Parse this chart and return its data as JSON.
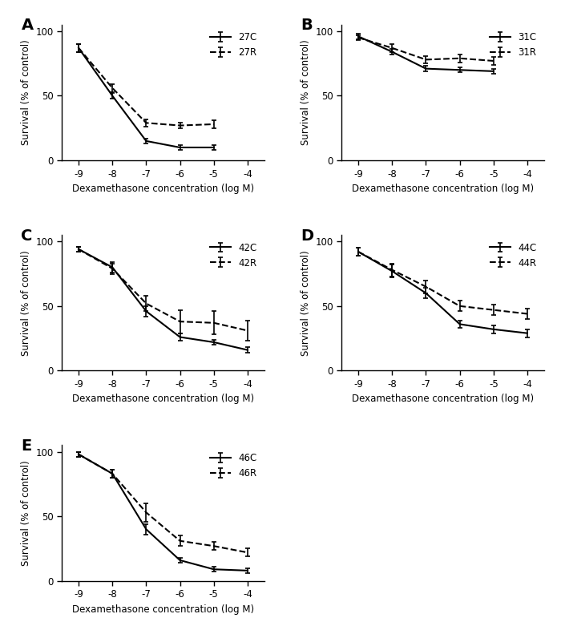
{
  "x_ticks": [
    -9,
    -8,
    -7,
    -6,
    -5,
    -4
  ],
  "xlabel": "Dexamethasone concentration (log M)",
  "ylabel": "Survival (% of control)",
  "panels": [
    {
      "label": "A",
      "legend_c": "27C",
      "legend_r": "27R",
      "x": [
        -9,
        -8,
        -7,
        -6,
        -5
      ],
      "yC": [
        87,
        50,
        15,
        10,
        10
      ],
      "yeC": [
        3,
        2,
        2,
        2,
        2
      ],
      "yR": [
        87,
        56,
        29,
        27,
        28
      ],
      "yeR": [
        3,
        3,
        3,
        2,
        3
      ],
      "ylim": [
        0,
        105
      ]
    },
    {
      "label": "B",
      "legend_c": "31C",
      "legend_r": "31R",
      "x": [
        -9,
        -8,
        -7,
        -6,
        -5
      ],
      "yC": [
        96,
        84,
        71,
        70,
        69
      ],
      "yeC": [
        2,
        2,
        2,
        2,
        2
      ],
      "yR": [
        95,
        87,
        78,
        79,
        77
      ],
      "yeR": [
        2,
        3,
        3,
        3,
        3
      ],
      "ylim": [
        0,
        105
      ]
    },
    {
      "label": "C",
      "legend_c": "42C",
      "legend_r": "42R",
      "x": [
        -9,
        -8,
        -7,
        -6,
        -5,
        -4
      ],
      "yC": [
        94,
        80,
        46,
        26,
        22,
        16
      ],
      "yeC": [
        2,
        4,
        4,
        3,
        2,
        2
      ],
      "yR": [
        94,
        79,
        52,
        38,
        37,
        31
      ],
      "yeR": [
        2,
        4,
        6,
        9,
        9,
        8
      ],
      "ylim": [
        0,
        105
      ]
    },
    {
      "label": "D",
      "legend_c": "44C",
      "legend_r": "44R",
      "x": [
        -9,
        -8,
        -7,
        -6,
        -5,
        -4
      ],
      "yC": [
        92,
        77,
        60,
        36,
        32,
        29
      ],
      "yeC": [
        3,
        5,
        4,
        3,
        3,
        3
      ],
      "yR": [
        92,
        78,
        65,
        50,
        47,
        44
      ],
      "yeR": [
        3,
        5,
        5,
        4,
        4,
        4
      ],
      "ylim": [
        0,
        105
      ]
    },
    {
      "label": "E",
      "legend_c": "46C",
      "legend_r": "46R",
      "x": [
        -9,
        -8,
        -7,
        -6,
        -5,
        -4
      ],
      "yC": [
        98,
        83,
        40,
        16,
        9,
        8
      ],
      "yeC": [
        2,
        3,
        4,
        2,
        2,
        2
      ],
      "yR": [
        98,
        83,
        53,
        31,
        27,
        22
      ],
      "yeR": [
        2,
        3,
        7,
        4,
        3,
        3
      ],
      "ylim": [
        0,
        105
      ]
    }
  ]
}
